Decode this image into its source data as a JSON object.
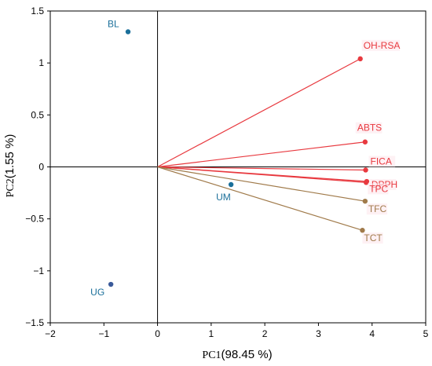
{
  "chart_data": {
    "type": "scatter",
    "subtype": "pca-biplot",
    "xlabel_prefix": "PC1",
    "xlabel_pct": "(98.45 %)",
    "ylabel_prefix": "PC2",
    "ylabel_pct": "(1.55 %)",
    "xlim": [
      -2,
      5
    ],
    "ylim": [
      -1.5,
      1.5
    ],
    "xticks": [
      "−2",
      "−1",
      "0",
      "1",
      "2",
      "3",
      "4",
      "5"
    ],
    "xtick_values": [
      -2,
      -1,
      0,
      1,
      2,
      3,
      4,
      5
    ],
    "yticks": [
      "1.5",
      "1",
      "0.5",
      "0",
      "−0.5",
      "−1",
      "−1.5"
    ],
    "ytick_values": [
      1.5,
      1,
      0.5,
      0,
      -0.5,
      -1,
      -1.5
    ],
    "grid": false,
    "observations": [
      {
        "label": "BL",
        "x": -0.55,
        "y": 1.3
      },
      {
        "label": "UM",
        "x": 1.37,
        "y": -0.17
      },
      {
        "label": "UG",
        "x": -0.87,
        "y": -1.13
      }
    ],
    "variables": [
      {
        "label": "OH-RSA",
        "x": 3.78,
        "y": 1.04,
        "color": "#e8393f"
      },
      {
        "label": "ABTS",
        "x": 3.87,
        "y": 0.24,
        "color": "#e8393f"
      },
      {
        "label": "FICA",
        "x": 3.88,
        "y": -0.03,
        "color": "#e8393f"
      },
      {
        "label": "DPPH",
        "x": 3.9,
        "y": -0.14,
        "color": "#e8393f"
      },
      {
        "label": "TPC",
        "x": 3.89,
        "y": -0.15,
        "color": "#e8393f"
      },
      {
        "label": "TFC",
        "x": 3.87,
        "y": -0.33,
        "color": "#a07a4a"
      },
      {
        "label": "TCT",
        "x": 3.82,
        "y": -0.61,
        "color": "#a07a4a"
      }
    ],
    "colors": {
      "observation_point": "#1a6f9a",
      "observation_label": "#1a6f9a",
      "ug_point": "#3a5a9a",
      "axis": "#000000",
      "variable_red": "#e8393f",
      "variable_brown": "#a07a4a",
      "label_bg": "#fde8ec"
    }
  }
}
